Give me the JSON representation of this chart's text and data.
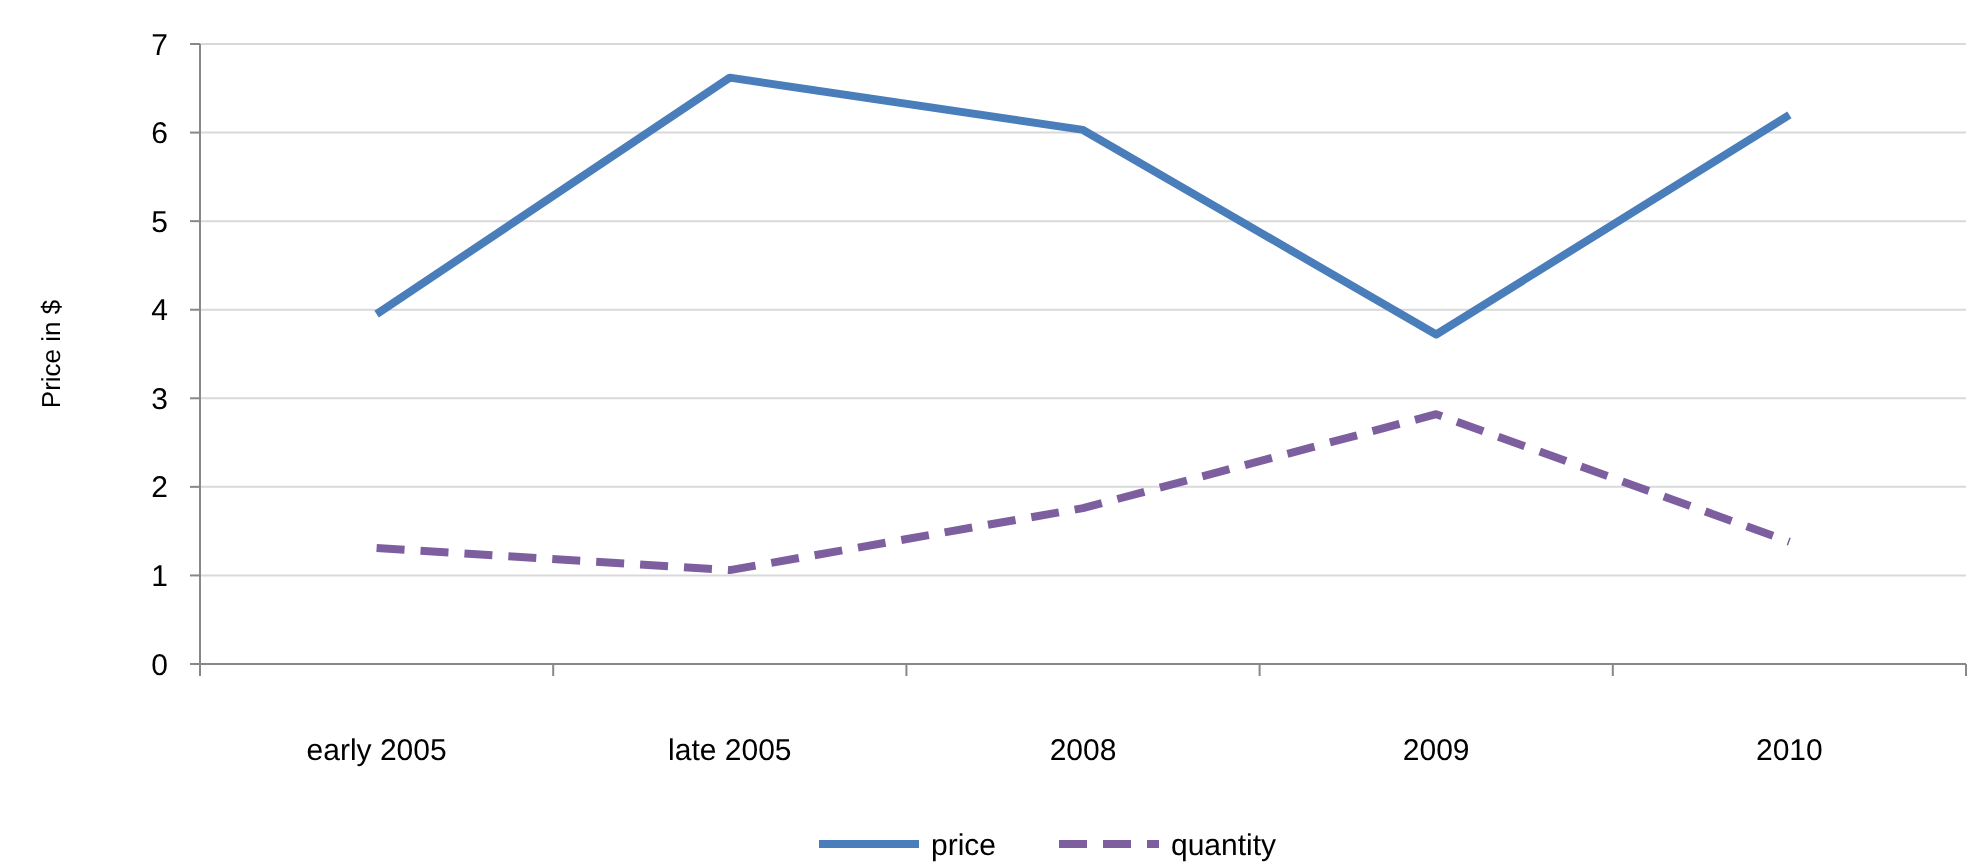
{
  "chart_data": {
    "type": "line",
    "ylabel": "Price in $",
    "categories": [
      "early 2005",
      "late 2005",
      "2008",
      "2009",
      "2010"
    ],
    "series": [
      {
        "name": "price",
        "color": "#4a7ebb",
        "line_style": "solid",
        "values": [
          3.95,
          6.62,
          6.03,
          3.72,
          6.2
        ]
      },
      {
        "name": "quantity",
        "color": "#7d5fa0",
        "line_style": "dashed",
        "values": [
          1.31,
          1.06,
          1.76,
          2.82,
          1.38
        ]
      }
    ],
    "ylim": [
      0,
      7
    ],
    "yticks": [
      0,
      1,
      2,
      3,
      4,
      5,
      6,
      7
    ],
    "grid": "y",
    "legend": "bottom",
    "marker": "none"
  }
}
